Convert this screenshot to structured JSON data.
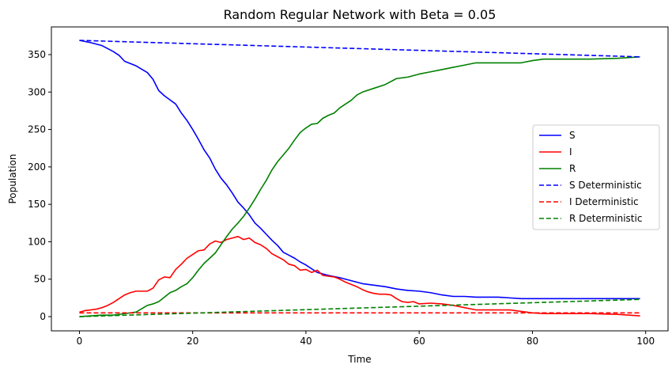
{
  "chart_data": {
    "type": "line",
    "title": "Random Regular Network with Beta = 0.05",
    "xlabel": "Time",
    "ylabel": "Population",
    "xlim": [
      -4.95,
      103.95
    ],
    "ylim": [
      -19,
      387
    ],
    "xticks": [
      0,
      20,
      40,
      60,
      80,
      100
    ],
    "yticks": [
      0,
      50,
      100,
      150,
      200,
      250,
      300,
      350
    ],
    "grid": false,
    "legend_position": "center-right",
    "series": [
      {
        "name": "S",
        "color": "#0000ff",
        "dash": "solid",
        "x": [
          0,
          2,
          4,
          6,
          7,
          8,
          10,
          12,
          13,
          14,
          15,
          17,
          18,
          19,
          20,
          21,
          22,
          23,
          24,
          25,
          26,
          27,
          28,
          29,
          30,
          31,
          32,
          33,
          34,
          35,
          36,
          37,
          38,
          39,
          40,
          42,
          44,
          46,
          48,
          50,
          52,
          54,
          56,
          58,
          60,
          62,
          64,
          66,
          68,
          70,
          72,
          74,
          76,
          78,
          80,
          85,
          90,
          95,
          99
        ],
        "y": [
          369,
          366,
          362,
          354,
          349,
          341,
          335,
          326,
          317,
          302,
          295,
          284,
          272,
          262,
          250,
          237,
          223,
          212,
          197,
          185,
          176,
          165,
          153,
          145,
          136,
          125,
          118,
          110,
          102,
          95,
          86,
          82,
          78,
          73,
          69,
          59,
          55,
          52,
          48,
          44,
          42,
          40,
          37,
          35,
          34,
          32,
          29,
          27,
          27,
          26,
          26,
          26,
          25,
          24,
          24,
          24,
          24,
          24,
          24
        ]
      },
      {
        "name": "I",
        "color": "#ff0000",
        "dash": "solid",
        "x": [
          0,
          1,
          2,
          3,
          4,
          5,
          6,
          7,
          8,
          9,
          10,
          11,
          12,
          13,
          14,
          15,
          16,
          17,
          18,
          19,
          20,
          21,
          22,
          23,
          24,
          25,
          26,
          27,
          28,
          29,
          30,
          31,
          32,
          33,
          34,
          35,
          36,
          37,
          38,
          39,
          40,
          41,
          42,
          43,
          44,
          45,
          46,
          47,
          48,
          49,
          50,
          51,
          52,
          53,
          54,
          55,
          56,
          57,
          58,
          59,
          60,
          62,
          64,
          66,
          68,
          70,
          72,
          74,
          76,
          78,
          80,
          82,
          85,
          90,
          95,
          99
        ],
        "y": [
          6,
          8,
          9,
          10,
          12,
          15,
          19,
          24,
          29,
          32,
          34,
          34,
          34,
          38,
          49,
          53,
          52,
          63,
          70,
          78,
          83,
          88,
          89,
          97,
          101,
          99,
          103,
          105,
          107,
          103,
          105,
          99,
          96,
          91,
          84,
          80,
          76,
          70,
          68,
          62,
          63,
          59,
          62,
          55,
          54,
          53,
          50,
          46,
          43,
          40,
          36,
          33,
          31,
          30,
          30,
          29,
          24,
          20,
          19,
          20,
          17,
          18,
          17,
          15,
          12,
          9,
          9,
          9,
          9,
          7,
          5,
          4,
          4,
          4,
          3,
          1
        ]
      },
      {
        "name": "R",
        "color": "#008000",
        "dash": "solid",
        "x": [
          0,
          2,
          4,
          6,
          8,
          10,
          12,
          13,
          14,
          15,
          16,
          17,
          18,
          19,
          20,
          21,
          22,
          23,
          24,
          25,
          26,
          27,
          28,
          29,
          30,
          31,
          32,
          33,
          34,
          35,
          36,
          37,
          38,
          39,
          40,
          41,
          42,
          43,
          44,
          45,
          46,
          47,
          48,
          49,
          50,
          52,
          54,
          56,
          58,
          60,
          62,
          64,
          66,
          68,
          70,
          72,
          74,
          76,
          78,
          80,
          82,
          85,
          90,
          95,
          99
        ],
        "y": [
          0,
          1,
          2,
          2,
          4,
          6,
          15,
          17,
          20,
          26,
          32,
          35,
          40,
          44,
          52,
          62,
          71,
          78,
          85,
          96,
          107,
          117,
          125,
          134,
          145,
          157,
          170,
          182,
          196,
          207,
          216,
          225,
          236,
          246,
          252,
          257,
          258,
          265,
          269,
          272,
          279,
          284,
          289,
          296,
          300,
          305,
          310,
          318,
          320,
          324,
          327,
          330,
          333,
          336,
          339,
          339,
          339,
          339,
          339,
          342,
          344,
          344,
          344,
          345,
          347
        ]
      },
      {
        "name": "S Deterministic",
        "color": "#0000ff",
        "dash": "dashed",
        "x": [
          0,
          99
        ],
        "y": [
          369,
          347
        ]
      },
      {
        "name": "I Deterministic",
        "color": "#ff0000",
        "dash": "dashed",
        "x": [
          0,
          99
        ],
        "y": [
          5,
          5
        ]
      },
      {
        "name": "R Deterministic",
        "color": "#008000",
        "dash": "dashed",
        "x": [
          0,
          99
        ],
        "y": [
          0,
          23
        ]
      }
    ]
  }
}
